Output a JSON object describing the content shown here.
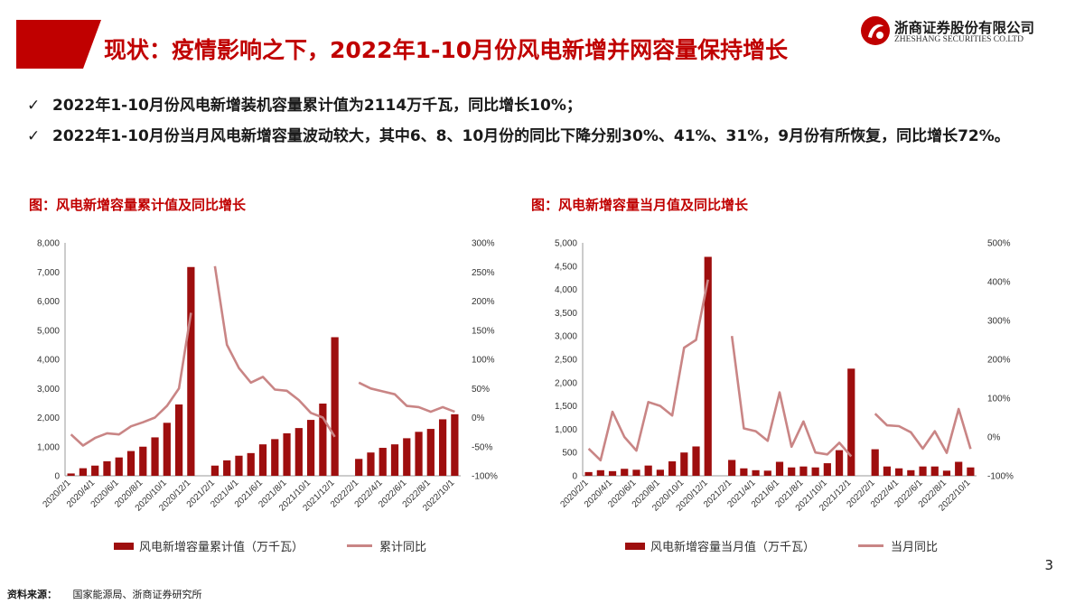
{
  "slide": {
    "title": "现状：疫情影响之下，2022年1-10月份风电新增并网容量保持增长",
    "page_number": "3",
    "source_label": "资料来源：",
    "source_text": "国家能源局、浙商证券研究所"
  },
  "brand": {
    "name_cn": "浙商证券股份有限公司",
    "name_en": "ZHESHANG SECURITIES CO.LTD",
    "accent_color": "#c00000"
  },
  "bullets": [
    {
      "check": "✓",
      "text": "2022年1-10月份风电新增装机容量累计值为2114万千瓦，同比增长10%；"
    },
    {
      "check": "✓",
      "text": "2022年1-10月份当月风电新增容量波动较大，其中6、8、10月份的同比下降分别30%、41%、31%，9月份有所恢复，同比增长72%。"
    }
  ],
  "chart_data": [
    {
      "type": "bar",
      "caption": "图：风电新增容量累计值及同比增长",
      "categories": [
        "2020/2/1",
        "2020/3/1",
        "2020/4/1",
        "2020/5/1",
        "2020/6/1",
        "2020/7/1",
        "2020/8/1",
        "2020/9/1",
        "2020/10/1",
        "2020/11/1",
        "2020/12/1",
        "2021/1/1",
        "2021/2/1",
        "2021/3/1",
        "2021/4/1",
        "2021/5/1",
        "2021/6/1",
        "2021/7/1",
        "2021/8/1",
        "2021/9/1",
        "2021/10/1",
        "2021/11/1",
        "2021/12/1",
        "2022/1/1",
        "2022/2/1",
        "2022/3/1",
        "2022/4/1",
        "2022/5/1",
        "2022/6/1",
        "2022/7/1",
        "2022/8/1",
        "2022/9/1",
        "2022/10/1"
      ],
      "tick_labels": [
        "2020/2/1",
        "2020/4/1",
        "2020/6/1",
        "2020/8/1",
        "2020/10/1",
        "2020/12/1",
        "2021/2/1",
        "2021/4/1",
        "2021/6/1",
        "2021/8/1",
        "2021/10/1",
        "2021/12/1",
        "2022/2/1",
        "2022/4/1",
        "2022/6/1",
        "2022/8/1",
        "2022/10/1"
      ],
      "series": [
        {
          "name": "风电新增容量累计值（万千瓦）",
          "axis": "left",
          "kind": "bar",
          "color": "#9e0e0e",
          "values": [
            80,
            260,
            350,
            500,
            630,
            850,
            1000,
            1320,
            1820,
            2450,
            7170,
            null,
            350,
            530,
            690,
            780,
            1080,
            1260,
            1460,
            1640,
            1920,
            2480,
            4760,
            null,
            580,
            800,
            960,
            1080,
            1290,
            1510,
            1610,
            1940,
            2114
          ]
        },
        {
          "name": "累计同比",
          "axis": "right",
          "kind": "line",
          "color": "#c98585",
          "values": [
            -0.29,
            -0.48,
            -0.35,
            -0.27,
            -0.29,
            -0.15,
            -0.08,
            0.0,
            0.2,
            0.5,
            1.8,
            null,
            2.6,
            1.25,
            0.85,
            0.6,
            0.7,
            0.48,
            0.46,
            0.3,
            0.08,
            0.0,
            -0.33,
            null,
            0.6,
            0.5,
            0.45,
            0.4,
            0.2,
            0.18,
            0.1,
            0.18,
            0.1
          ]
        }
      ],
      "y_left": {
        "min": 0,
        "max": 8000,
        "ticks": [
          0,
          1000,
          2000,
          3000,
          4000,
          5000,
          6000,
          7000,
          8000
        ],
        "tick_labels": [
          "0",
          "1,000",
          "2,000",
          "3,000",
          "4,000",
          "5,000",
          "6,000",
          "7,000",
          "8,000"
        ]
      },
      "y_right": {
        "min": -1.0,
        "max": 3.0,
        "ticks": [
          -1.0,
          -0.5,
          0,
          0.5,
          1.0,
          1.5,
          2.0,
          2.5,
          3.0
        ],
        "tick_labels": [
          "-100%",
          "-50%",
          "0%",
          "50%",
          "100%",
          "150%",
          "200%",
          "250%",
          "300%"
        ]
      },
      "grid": false,
      "legend_position": "bottom"
    },
    {
      "type": "bar",
      "caption": "图：风电新增容量当月值及同比增长",
      "categories": [
        "2020/2/1",
        "2020/3/1",
        "2020/4/1",
        "2020/5/1",
        "2020/6/1",
        "2020/7/1",
        "2020/8/1",
        "2020/9/1",
        "2020/10/1",
        "2020/11/1",
        "2020/12/1",
        "2021/1/1",
        "2021/2/1",
        "2021/3/1",
        "2021/4/1",
        "2021/5/1",
        "2021/6/1",
        "2021/7/1",
        "2021/8/1",
        "2021/9/1",
        "2021/10/1",
        "2021/11/1",
        "2021/12/1",
        "2022/1/1",
        "2022/2/1",
        "2022/3/1",
        "2022/4/1",
        "2022/5/1",
        "2022/6/1",
        "2022/7/1",
        "2022/8/1",
        "2022/9/1",
        "2022/10/1"
      ],
      "tick_labels": [
        "2020/2/1",
        "2020/4/1",
        "2020/6/1",
        "2020/8/1",
        "2020/10/1",
        "2020/12/1",
        "2021/2/1",
        "2021/4/1",
        "2021/6/1",
        "2021/8/1",
        "2021/10/1",
        "2021/12/1",
        "2022/2/1",
        "2022/4/1",
        "2022/6/1",
        "2022/8/1",
        "2022/10/1"
      ],
      "series": [
        {
          "name": "风电新增容量当月值（万千瓦）",
          "axis": "left",
          "kind": "bar",
          "color": "#9e0e0e",
          "values": [
            80,
            120,
            100,
            150,
            130,
            220,
            130,
            310,
            500,
            630,
            4700,
            null,
            340,
            160,
            120,
            110,
            300,
            180,
            200,
            180,
            270,
            550,
            2300,
            null,
            570,
            200,
            160,
            120,
            200,
            200,
            110,
            300,
            180
          ]
        },
        {
          "name": "当月同比",
          "axis": "right",
          "kind": "line",
          "color": "#c98585",
          "values": [
            -0.3,
            -0.6,
            0.65,
            0.0,
            -0.35,
            0.9,
            0.8,
            0.55,
            2.3,
            2.5,
            4.05,
            null,
            2.6,
            0.22,
            0.15,
            -0.1,
            1.15,
            -0.25,
            0.4,
            -0.4,
            -0.45,
            -0.15,
            -0.5,
            null,
            0.6,
            0.3,
            0.28,
            0.12,
            -0.3,
            0.15,
            -0.41,
            0.72,
            -0.31
          ]
        }
      ],
      "y_left": {
        "min": 0,
        "max": 5000,
        "ticks": [
          0,
          500,
          1000,
          1500,
          2000,
          2500,
          3000,
          3500,
          4000,
          4500,
          5000
        ],
        "tick_labels": [
          "0",
          "500",
          "1,000",
          "1,500",
          "2,000",
          "2,500",
          "3,000",
          "3,500",
          "4,000",
          "4,500",
          "5,000"
        ]
      },
      "y_right": {
        "min": -1.0,
        "max": 5.0,
        "ticks": [
          -1.0,
          0,
          1.0,
          2.0,
          3.0,
          4.0,
          5.0
        ],
        "tick_labels": [
          "-100%",
          "0%",
          "100%",
          "200%",
          "300%",
          "400%",
          "500%"
        ]
      },
      "grid": false,
      "legend_position": "bottom"
    }
  ]
}
